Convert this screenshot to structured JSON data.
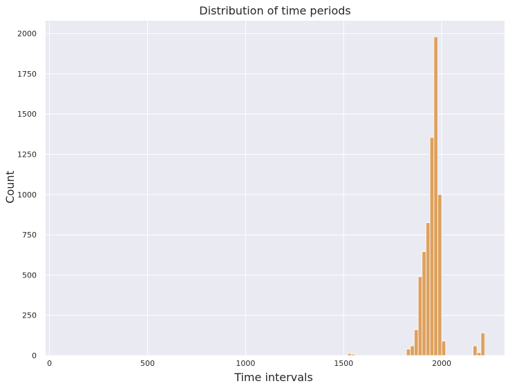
{
  "chart_data": {
    "type": "bar",
    "title": "Distribution of time periods",
    "xlabel": "Time intervals",
    "ylabel": "Count",
    "xlim": [
      -20,
      2320
    ],
    "ylim": [
      0,
      2080
    ],
    "xticks": [
      0,
      500,
      1000,
      1500,
      2000
    ],
    "yticks": [
      0,
      250,
      500,
      750,
      1000,
      1250,
      1500,
      1750,
      2000
    ],
    "grid": true,
    "legend": "none",
    "bar_color": "#DDA15E",
    "background_color": "#EAEAF2",
    "bin_width": 20,
    "bars": [
      {
        "x0": 1520,
        "value": 12
      },
      {
        "x0": 1540,
        "value": 8
      },
      {
        "x0": 1780,
        "value": 5
      },
      {
        "x0": 1820,
        "value": 40
      },
      {
        "x0": 1840,
        "value": 60
      },
      {
        "x0": 1860,
        "value": 160
      },
      {
        "x0": 1880,
        "value": 490
      },
      {
        "x0": 1900,
        "value": 645
      },
      {
        "x0": 1920,
        "value": 825
      },
      {
        "x0": 1940,
        "value": 1355
      },
      {
        "x0": 1960,
        "value": 1980
      },
      {
        "x0": 1980,
        "value": 1000
      },
      {
        "x0": 2000,
        "value": 90
      },
      {
        "x0": 2160,
        "value": 60
      },
      {
        "x0": 2180,
        "value": 18
      },
      {
        "x0": 2200,
        "value": 140
      }
    ]
  }
}
